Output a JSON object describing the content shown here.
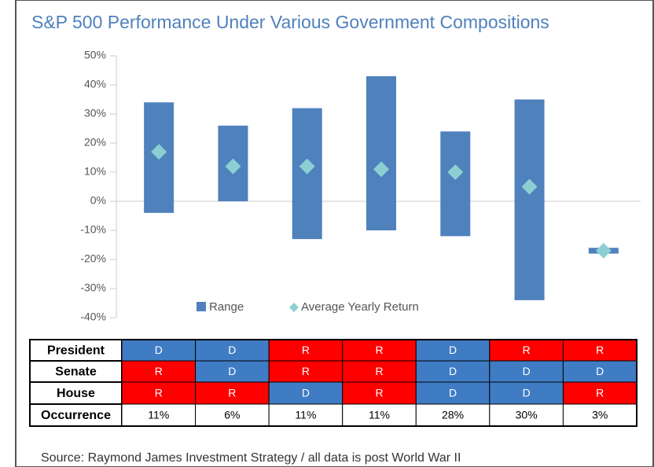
{
  "chart_data": {
    "type": "range-bar",
    "title": "S&P 500 Performance Under Various Government Compositions",
    "categories": [
      null,
      null,
      null,
      null,
      null,
      null,
      null
    ],
    "series": [
      {
        "name": "Range",
        "color": "#4f81bd",
        "low": [
          -4,
          0,
          -13,
          -10,
          -12,
          -34,
          -18
        ],
        "high": [
          34,
          26,
          32,
          43,
          24,
          35,
          -16
        ]
      },
      {
        "name": "Average Yearly Return",
        "color": "#8ccfd2",
        "values": [
          17,
          12,
          12,
          11,
          10,
          5,
          -17
        ]
      }
    ],
    "ylim": [
      -40,
      50
    ],
    "yticks": [
      {
        "value": -40,
        "label": "-40%"
      },
      {
        "value": -30,
        "label": "-30%"
      },
      {
        "value": -20,
        "label": "-20%"
      },
      {
        "value": -10,
        "label": "-10%"
      },
      {
        "value": 0,
        "label": "0%"
      },
      {
        "value": 10,
        "label": "10%"
      },
      {
        "value": 20,
        "label": "20%"
      },
      {
        "value": 30,
        "label": "30%"
      },
      {
        "value": 40,
        "label": "40%"
      },
      {
        "value": 50,
        "label": "50%"
      }
    ],
    "legend": "bottom"
  },
  "table": {
    "colors": {
      "D": "#3f7cc4",
      "R": "#ff0000"
    },
    "rows": [
      {
        "label": "President",
        "cells": [
          "D",
          "D",
          "R",
          "R",
          "D",
          "R",
          "R"
        ]
      },
      {
        "label": "Senate",
        "cells": [
          "R",
          "D",
          "R",
          "R",
          "D",
          "D",
          "D"
        ]
      },
      {
        "label": "House",
        "cells": [
          "R",
          "R",
          "D",
          "R",
          "D",
          "D",
          "R"
        ]
      },
      {
        "label": "Occurrence",
        "cells": [
          "11%",
          "6%",
          "11%",
          "11%",
          "28%",
          "30%",
          "3%"
        ]
      }
    ]
  },
  "source": "Source: Raymond James Investment Strategy / all data is post World War II"
}
